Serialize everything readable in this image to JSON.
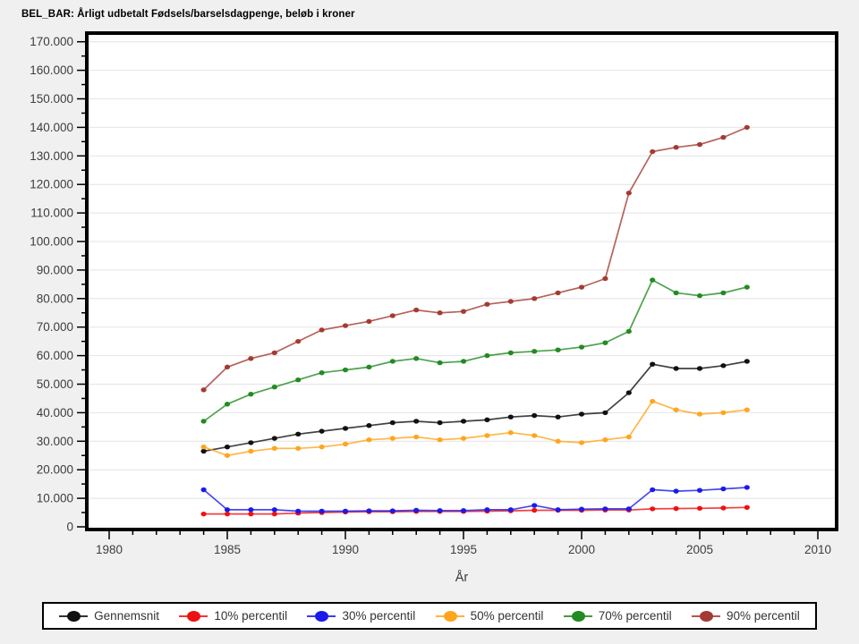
{
  "title": "BEL_BAR: Årligt udbetalt Fødsels/barselsdagpenge, beløb i kroner",
  "chart_data": {
    "type": "line",
    "xlabel": "År",
    "ylabel": "",
    "x_range_years": [
      1980,
      2010
    ],
    "ylim": [
      0,
      173000
    ],
    "grid": "horizontal-major",
    "legend_position": "bottom",
    "x": [
      1984,
      1985,
      1986,
      1987,
      1988,
      1989,
      1990,
      1991,
      1992,
      1993,
      1994,
      1995,
      1996,
      1997,
      1998,
      1999,
      2000,
      2001,
      2002,
      2003,
      2004,
      2005,
      2006,
      2007
    ],
    "series": [
      {
        "name": "Gennemsnit",
        "color": "#111111",
        "values": [
          26500,
          28000,
          29500,
          31000,
          32500,
          33500,
          34500,
          35500,
          36500,
          37000,
          36500,
          37000,
          37500,
          38500,
          39000,
          38500,
          39500,
          40000,
          47000,
          57000,
          55500,
          55500,
          56500,
          58000
        ]
      },
      {
        "name": "10% percentil",
        "color": "#ee1111",
        "values": [
          4500,
          4500,
          4500,
          4500,
          4800,
          5000,
          5200,
          5300,
          5300,
          5400,
          5400,
          5400,
          5500,
          5600,
          5800,
          5800,
          5800,
          5900,
          5900,
          6300,
          6400,
          6500,
          6600,
          6800
        ]
      },
      {
        "name": "30% percentil",
        "color": "#1a1aeb",
        "values": [
          13000,
          6000,
          6000,
          6000,
          5500,
          5500,
          5500,
          5600,
          5600,
          5800,
          5700,
          5700,
          6000,
          6000,
          7500,
          6000,
          6200,
          6300,
          6300,
          13000,
          12500,
          12800,
          13300,
          13800
        ]
      },
      {
        "name": "50% percentil",
        "color": "#ffa51e",
        "values": [
          28000,
          25000,
          26500,
          27500,
          27500,
          28000,
          29000,
          30500,
          31000,
          31500,
          30500,
          31000,
          32000,
          33000,
          32000,
          30000,
          29500,
          30500,
          31500,
          44000,
          41000,
          39500,
          40000,
          41000
        ]
      },
      {
        "name": "70% percentil",
        "color": "#228b22",
        "values": [
          37000,
          43000,
          46500,
          49000,
          51500,
          54000,
          55000,
          56000,
          58000,
          59000,
          57500,
          58000,
          60000,
          61000,
          61500,
          62000,
          63000,
          64500,
          68500,
          86500,
          82000,
          81000,
          82000,
          84000
        ]
      },
      {
        "name": "90% percentil",
        "color": "#a43b32",
        "values": [
          48000,
          56000,
          59000,
          61000,
          65000,
          69000,
          70500,
          72000,
          74000,
          76000,
          75000,
          75500,
          78000,
          79000,
          80000,
          82000,
          84000,
          87000,
          117000,
          131500,
          133000,
          134000,
          136500,
          140000
        ]
      }
    ],
    "y_ticks": [
      {
        "value": 0,
        "label": "0"
      },
      {
        "value": 10000,
        "label": "10.000"
      },
      {
        "value": 20000,
        "label": "20.000"
      },
      {
        "value": 30000,
        "label": "30.000"
      },
      {
        "value": 40000,
        "label": "40.000"
      },
      {
        "value": 50000,
        "label": "50.000"
      },
      {
        "value": 60000,
        "label": "60.000"
      },
      {
        "value": 70000,
        "label": "70.000"
      },
      {
        "value": 80000,
        "label": "80.000"
      },
      {
        "value": 90000,
        "label": "90.000"
      },
      {
        "value": 100000,
        "label": "100.000"
      },
      {
        "value": 110000,
        "label": "110.000"
      },
      {
        "value": 120000,
        "label": "120.000"
      },
      {
        "value": 130000,
        "label": "130.000"
      },
      {
        "value": 140000,
        "label": "140.000"
      },
      {
        "value": 150000,
        "label": "150.000"
      },
      {
        "value": 160000,
        "label": "160.000"
      },
      {
        "value": 170000,
        "label": "170.000"
      }
    ],
    "y_minor_step": 5000,
    "x_ticks": [
      {
        "value": 1980,
        "label": "1980"
      },
      {
        "value": 1985,
        "label": "1985"
      },
      {
        "value": 1990,
        "label": "1990"
      },
      {
        "value": 1995,
        "label": "1995"
      },
      {
        "value": 2000,
        "label": "2000"
      },
      {
        "value": 2005,
        "label": "2005"
      },
      {
        "value": 2010,
        "label": "2010"
      }
    ],
    "x_minor_step": 1
  },
  "style_colors": {
    "page_background": "#f0f0f0",
    "plot_background": "#ffffff",
    "frame": "#000000",
    "gridline": "#e4e4e4",
    "tick_label": "#3d3d3d",
    "legend_text": "#333333"
  }
}
